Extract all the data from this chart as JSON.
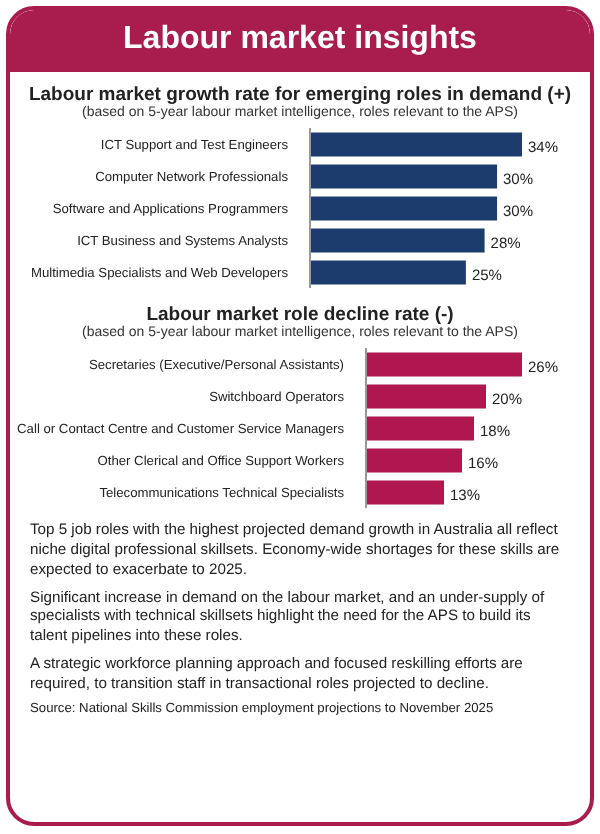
{
  "chart_data": [
    {
      "type": "other",
      "title": "Labour market insights"
    },
    {
      "type": "bar",
      "orientation": "horizontal",
      "title": "Labour market growth rate for emerging roles in demand (+)",
      "subtitle": "(based on 5-year labour market intelligence, roles relevant to the APS)",
      "categories": [
        "ICT Support and Test Engineers",
        "Computer Network Professionals",
        "Software and Applications Programmers",
        "ICT Business and Systems Analysts",
        "Multimedia Specialists and Web Developers"
      ],
      "values": [
        34,
        30,
        30,
        28,
        25
      ],
      "value_labels": [
        "34%",
        "30%",
        "30%",
        "28%",
        "25%"
      ],
      "color": "#1c3c6e",
      "tick_labels": "y",
      "grid": false,
      "legend": false
    },
    {
      "type": "bar",
      "orientation": "horizontal",
      "title": "Labour market role decline rate (-)",
      "subtitle": "(based on 5-year labour market intelligence, roles relevant to the APS)",
      "categories": [
        "Secretaries (Executive/Personal Assistants)",
        "Switchboard Operators",
        "Call or Contact Centre and Customer Service Managers",
        "Other Clerical and Office Support Workers",
        "Telecommunications Technical Specialists"
      ],
      "values": [
        26,
        20,
        18,
        16,
        13
      ],
      "value_labels": [
        "26%",
        "20%",
        "18%",
        "16%",
        "13%"
      ],
      "color": "#b0174f",
      "tick_labels": "y",
      "grid": false,
      "legend": false
    },
    {
      "type": "other",
      "annotations": [
        "Top 5 job roles with the highest projected demand growth in Australia all reflect niche digital professional skillsets. Economy-wide shortages for these skills are expected to exacerbate to 2025.",
        "Significant increase in demand on the labour market, and an under-supply of specialists with technical skillsets highlight the need for the APS to build its talent pipelines into these roles.",
        "A strategic workforce planning approach and focused reskilling efforts are required, to transition staff in transactional roles projected to decline.",
        "Source: National Skills Commission employment projections to November 2025"
      ]
    }
  ]
}
